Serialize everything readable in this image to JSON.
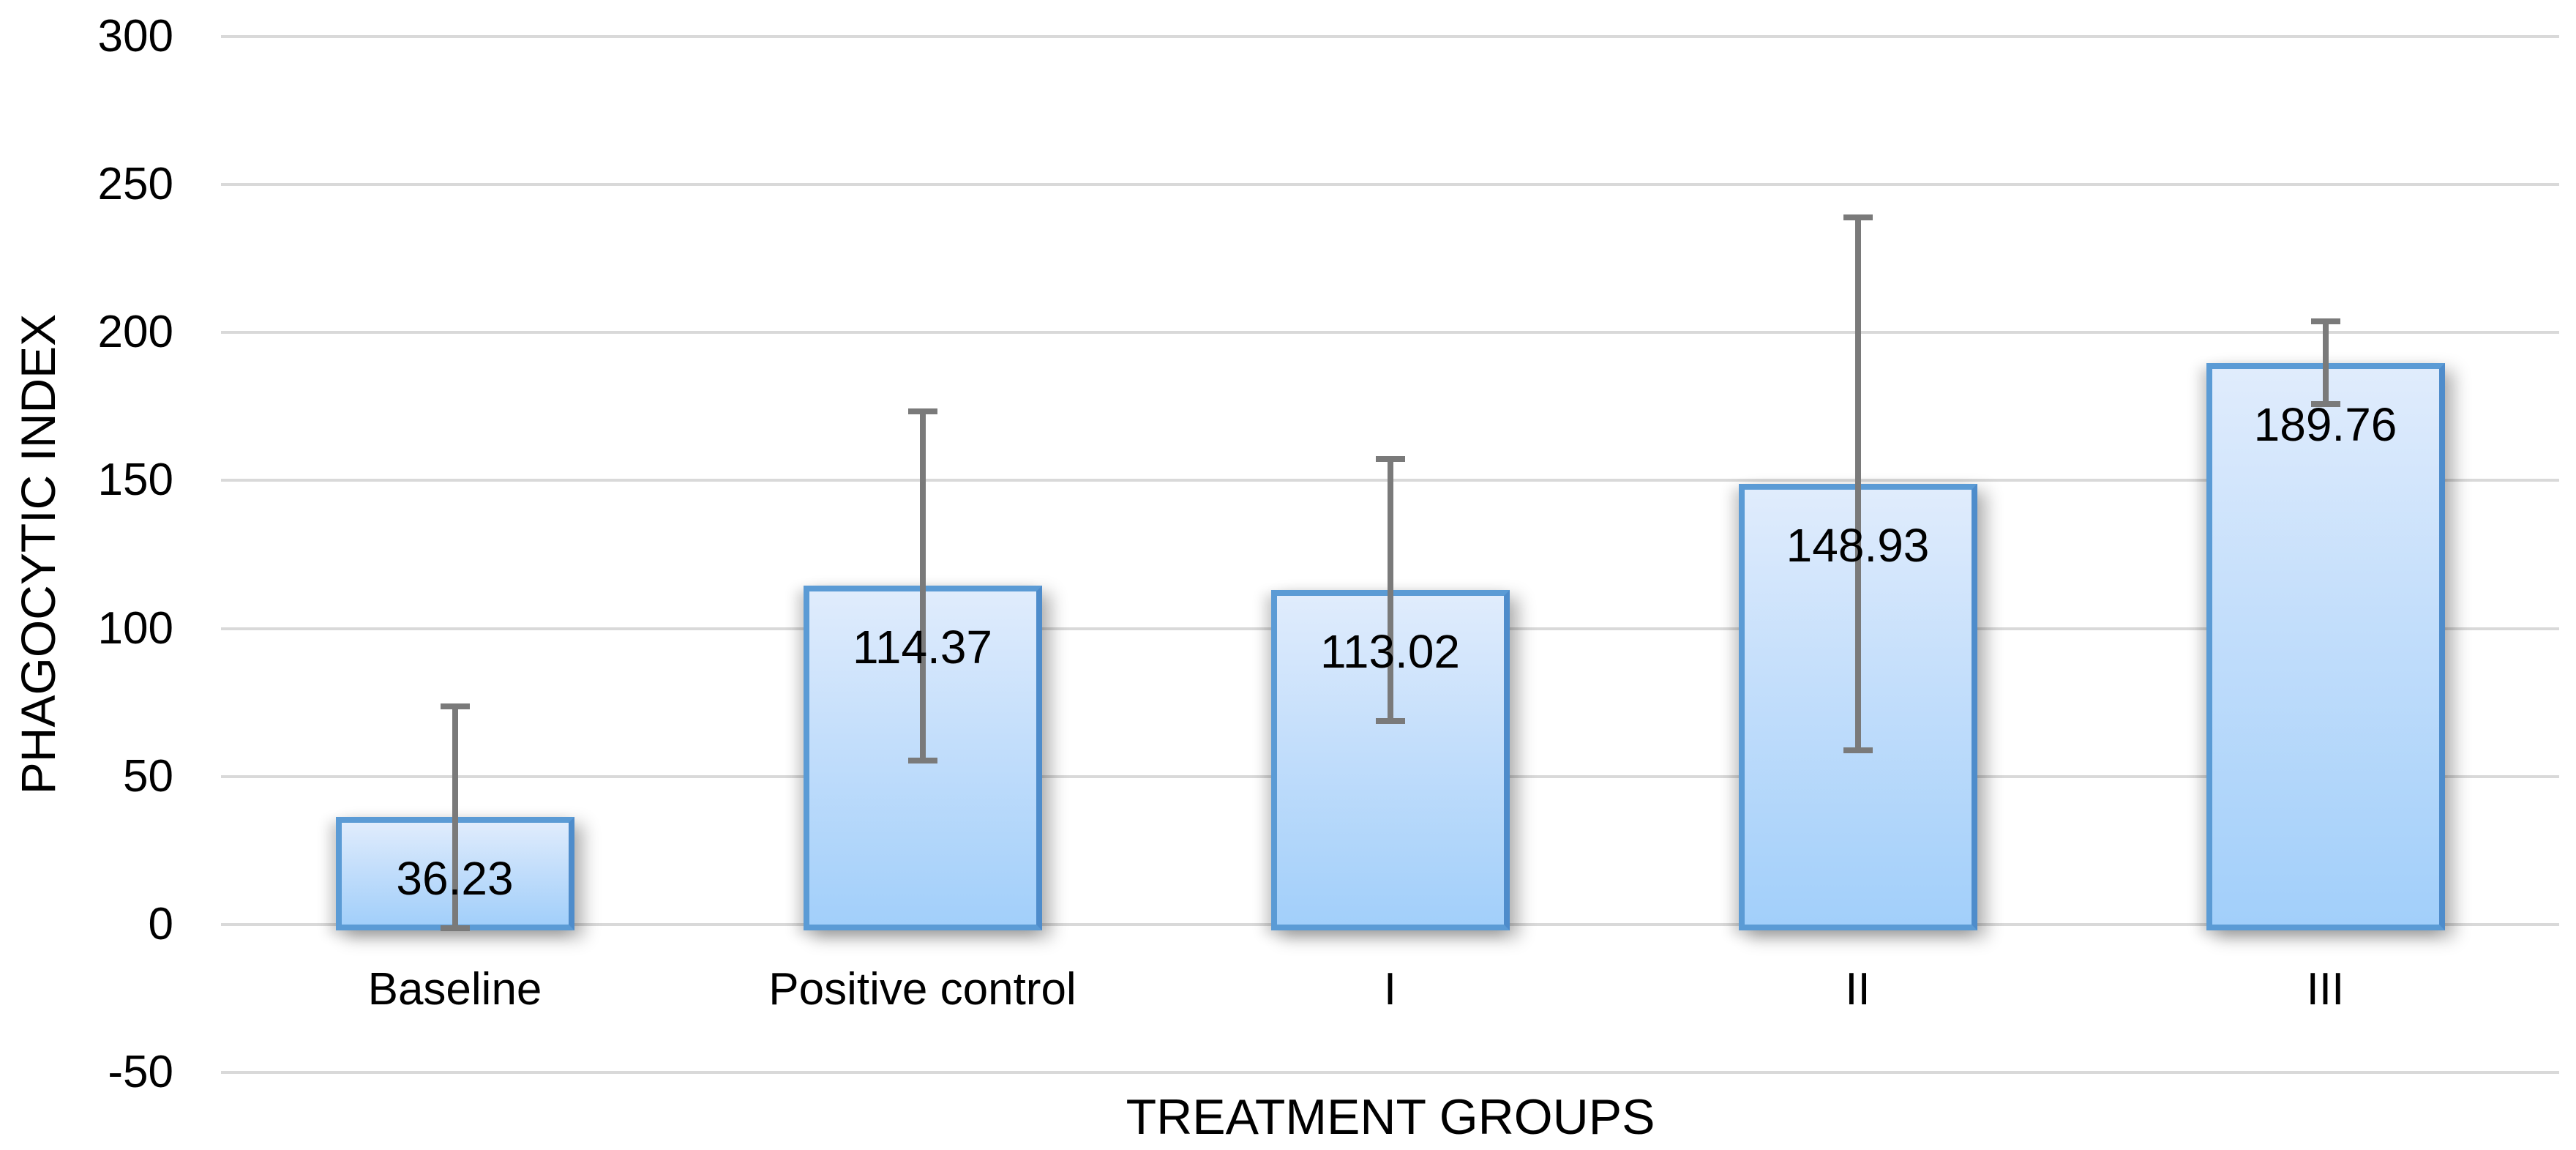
{
  "chart_data": {
    "type": "bar",
    "title": "",
    "categories": [
      "Baseline",
      "Positive control",
      "I",
      "II",
      "III"
    ],
    "values": [
      36.23,
      114.37,
      113.02,
      148.93,
      189.76
    ],
    "data_labels": [
      "36.23",
      "114.37",
      "113.02",
      "148.93",
      "189.76"
    ],
    "error_plus_minus": [
      38.5,
      60,
      45.3,
      91,
      15
    ],
    "series_name": "Phagocytic index",
    "xlabel": "TREATMENT GROUPS",
    "ylabel": "PHAGOCYTIC INDEX",
    "ylim": [
      -50,
      300
    ],
    "ytick_step": 50,
    "yticks": [
      300,
      250,
      200,
      150,
      100,
      50,
      0,
      -50
    ],
    "grid": true,
    "legend_position": "none",
    "colors": {
      "bar_fill_top": "#e0ecfc",
      "bar_fill_bottom": "#a2cffa",
      "bar_border": "#5b9bd5",
      "error_bar": "#7a7a7a",
      "gridline": "#d9d9d9",
      "text": "#000000",
      "background": "#ffffff"
    }
  }
}
